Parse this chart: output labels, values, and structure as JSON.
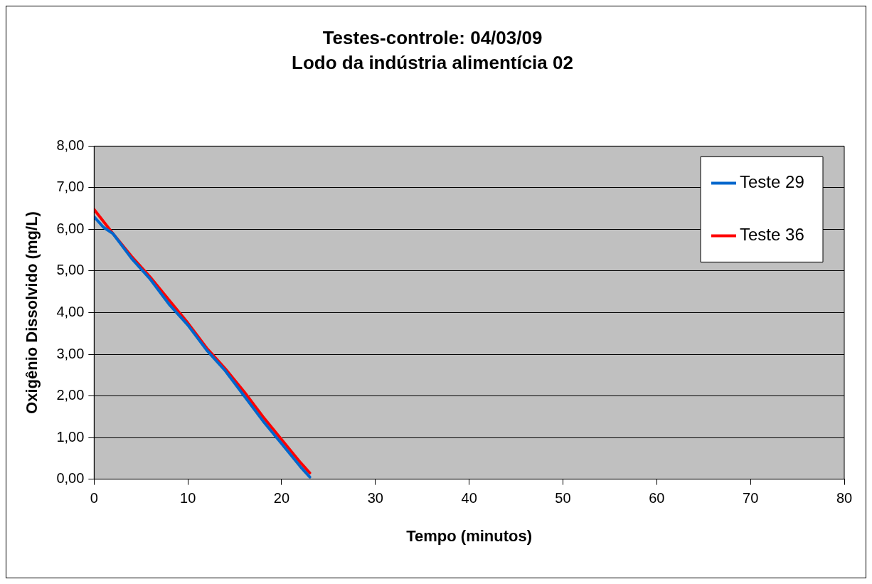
{
  "chart_data": {
    "type": "line",
    "title": "Testes-controle: 04/03/09",
    "subtitle": "Lodo da indústria alimentícia 02",
    "xlabel": "Tempo (minutos)",
    "ylabel": "Oxigênio Dissolvido (mg/L)",
    "xlim": [
      0,
      80
    ],
    "xticks": [
      0,
      10,
      20,
      30,
      40,
      50,
      60,
      70,
      80
    ],
    "ylim": [
      0,
      8
    ],
    "yticks": [
      {
        "value": 0,
        "label": "0,00"
      },
      {
        "value": 1,
        "label": "1,00"
      },
      {
        "value": 2,
        "label": "2,00"
      },
      {
        "value": 3,
        "label": "3,00"
      },
      {
        "value": 4,
        "label": "4,00"
      },
      {
        "value": 5,
        "label": "5,00"
      },
      {
        "value": 6,
        "label": "6,00"
      },
      {
        "value": 7,
        "label": "7,00"
      },
      {
        "value": 8,
        "label": "8,00"
      }
    ],
    "grid": "y",
    "legend": "top right",
    "marker": "none",
    "line_style": "solid",
    "series": [
      {
        "name": "Teste 29",
        "color": "#0066cc",
        "x": [
          0,
          1,
          2,
          4,
          6,
          8,
          10,
          12,
          14,
          16,
          18,
          20,
          22,
          23
        ],
        "values": [
          6.3,
          6.05,
          5.9,
          5.3,
          4.8,
          4.2,
          3.7,
          3.1,
          2.6,
          2.0,
          1.4,
          0.85,
          0.3,
          0.05
        ]
      },
      {
        "name": "Teste 36",
        "color": "#ff0000",
        "x": [
          0,
          2,
          4,
          6,
          8,
          10,
          12,
          14,
          16,
          18,
          20,
          22,
          23
        ],
        "values": [
          6.48,
          5.9,
          5.35,
          4.85,
          4.3,
          3.75,
          3.15,
          2.65,
          2.1,
          1.5,
          0.95,
          0.4,
          0.15
        ]
      }
    ]
  }
}
